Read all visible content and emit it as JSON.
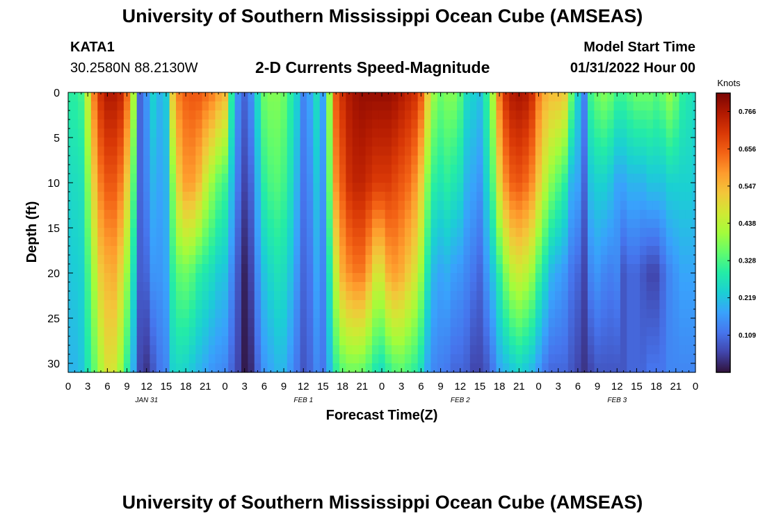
{
  "page": {
    "title": "University of Southern Mississippi Ocean Cube (AMSEAS)",
    "station_id": "KATA1",
    "station_coords": "30.2580N  88.2130W",
    "plot_heading": "2-D Currents Speed-Magnitude",
    "model_start_label": "Model Start Time",
    "model_start_value": "01/31/2022 Hour 00",
    "repeated_title": "University of Southern Mississippi Ocean Cube (AMSEAS)"
  },
  "colors": {
    "cmap": [
      "#30123b",
      "#4145ab",
      "#4675ed",
      "#39a2fc",
      "#1bcfd4",
      "#24eca6",
      "#61fc6c",
      "#a4fc3b",
      "#d1e834",
      "#f3c63a",
      "#fe9b2d",
      "#f36315",
      "#d93806",
      "#b11901",
      "#7a0403"
    ]
  },
  "chart_data": {
    "type": "heatmap",
    "title": "2-D Currents Speed-Magnitude",
    "xlabel": "Forecast Time(Z)",
    "ylabel": "Depth (ft)",
    "x_unit": "forecast hour",
    "xlim": [
      0,
      96
    ],
    "ylim": [
      31,
      0
    ],
    "x_ticks": [
      0,
      3,
      6,
      9,
      12,
      15,
      18,
      21,
      24,
      27,
      30,
      33,
      36,
      39,
      42,
      45,
      48,
      51,
      54,
      57,
      60,
      63,
      66,
      69,
      72,
      75,
      78,
      81,
      84,
      87,
      90,
      93,
      96
    ],
    "x_tick_labels": [
      "0",
      "3",
      "6",
      "9",
      "12",
      "15",
      "18",
      "21",
      "0",
      "3",
      "6",
      "9",
      "12",
      "15",
      "18",
      "21",
      "0",
      "3",
      "6",
      "9",
      "12",
      "15",
      "18",
      "21",
      "0",
      "3",
      "6",
      "9",
      "12",
      "15",
      "18",
      "21",
      "0"
    ],
    "date_labels": [
      {
        "hour": 12,
        "label": "JAN 31"
      },
      {
        "hour": 36,
        "label": "FEB 1"
      },
      {
        "hour": 60,
        "label": "FEB 2"
      },
      {
        "hour": 84,
        "label": "FEB 3"
      }
    ],
    "y_ticks": [
      0,
      5,
      10,
      15,
      20,
      25,
      30
    ],
    "y_tick_labels": [
      "0",
      "5",
      "10",
      "15",
      "20",
      "25",
      "30"
    ],
    "colorbar": {
      "unit": "Knots",
      "range": [
        0.0,
        0.82
      ],
      "ticks": [
        0.109,
        0.219,
        0.328,
        0.438,
        0.547,
        0.656,
        0.766
      ],
      "tick_labels": [
        "0.109",
        "0.219",
        "0.328",
        "0.438",
        "0.547",
        "0.656",
        "0.766"
      ]
    },
    "field": {
      "description": "current speed (knots) per forecast hour, interpolated over depth",
      "depth_nodes_ft": [
        0,
        10,
        20,
        31
      ],
      "hours": [
        0,
        1,
        2,
        3,
        4,
        5,
        6,
        7,
        8,
        9,
        10,
        11,
        12,
        13,
        14,
        15,
        16,
        17,
        18,
        19,
        20,
        21,
        22,
        23,
        24,
        25,
        26,
        27,
        28,
        29,
        30,
        31,
        32,
        33,
        34,
        35,
        36,
        37,
        38,
        39,
        40,
        41,
        42,
        43,
        44,
        45,
        46,
        47,
        48,
        49,
        50,
        51,
        52,
        53,
        54,
        55,
        56,
        57,
        58,
        59,
        60,
        61,
        62,
        63,
        64,
        65,
        66,
        67,
        68,
        69,
        70,
        71,
        72,
        73,
        74,
        75,
        76,
        77,
        78,
        79,
        80,
        81,
        82,
        83,
        84,
        85,
        86,
        87,
        88,
        89,
        90,
        91,
        92,
        93,
        94,
        95,
        96
      ],
      "speeds": [
        [
          0.3,
          0.25,
          0.22,
          0.2
        ],
        [
          0.3,
          0.26,
          0.23,
          0.2
        ],
        [
          0.32,
          0.27,
          0.24,
          0.22
        ],
        [
          0.45,
          0.38,
          0.32,
          0.28
        ],
        [
          0.62,
          0.52,
          0.42,
          0.35
        ],
        [
          0.72,
          0.62,
          0.52,
          0.42
        ],
        [
          0.76,
          0.66,
          0.55,
          0.48
        ],
        [
          0.76,
          0.66,
          0.56,
          0.47
        ],
        [
          0.74,
          0.62,
          0.5,
          0.4
        ],
        [
          0.64,
          0.52,
          0.4,
          0.3
        ],
        [
          0.42,
          0.34,
          0.26,
          0.19
        ],
        [
          0.1,
          0.1,
          0.09,
          0.06
        ],
        [
          0.16,
          0.14,
          0.1,
          0.04
        ],
        [
          0.24,
          0.2,
          0.16,
          0.08
        ],
        [
          0.2,
          0.18,
          0.16,
          0.12
        ],
        [
          0.23,
          0.2,
          0.18,
          0.14
        ],
        [
          0.52,
          0.38,
          0.3,
          0.24
        ],
        [
          0.62,
          0.52,
          0.35,
          0.25
        ],
        [
          0.65,
          0.58,
          0.36,
          0.24
        ],
        [
          0.66,
          0.58,
          0.34,
          0.22
        ],
        [
          0.66,
          0.54,
          0.3,
          0.2
        ],
        [
          0.64,
          0.46,
          0.28,
          0.18
        ],
        [
          0.62,
          0.4,
          0.26,
          0.16
        ],
        [
          0.58,
          0.35,
          0.23,
          0.15
        ],
        [
          0.55,
          0.32,
          0.22,
          0.14
        ],
        [
          0.3,
          0.22,
          0.15,
          0.1
        ],
        [
          0.15,
          0.12,
          0.08,
          0.06
        ],
        [
          0.1,
          0.06,
          0.02,
          0.01
        ],
        [
          0.15,
          0.1,
          0.06,
          0.03
        ],
        [
          0.26,
          0.2,
          0.15,
          0.1
        ],
        [
          0.36,
          0.3,
          0.22,
          0.16
        ],
        [
          0.38,
          0.33,
          0.25,
          0.18
        ],
        [
          0.38,
          0.34,
          0.27,
          0.2
        ],
        [
          0.36,
          0.32,
          0.26,
          0.2
        ],
        [
          0.3,
          0.27,
          0.22,
          0.16
        ],
        [
          0.24,
          0.2,
          0.16,
          0.12
        ],
        [
          0.14,
          0.12,
          0.1,
          0.08
        ],
        [
          0.18,
          0.15,
          0.12,
          0.1
        ],
        [
          0.26,
          0.22,
          0.18,
          0.14
        ],
        [
          0.18,
          0.16,
          0.14,
          0.12
        ],
        [
          0.4,
          0.36,
          0.28,
          0.2
        ],
        [
          0.66,
          0.6,
          0.45,
          0.3
        ],
        [
          0.72,
          0.66,
          0.56,
          0.34
        ],
        [
          0.76,
          0.72,
          0.6,
          0.36
        ],
        [
          0.78,
          0.74,
          0.62,
          0.36
        ],
        [
          0.79,
          0.74,
          0.62,
          0.35
        ],
        [
          0.79,
          0.72,
          0.56,
          0.32
        ],
        [
          0.79,
          0.7,
          0.48,
          0.28
        ],
        [
          0.79,
          0.7,
          0.48,
          0.26
        ],
        [
          0.79,
          0.7,
          0.56,
          0.3
        ],
        [
          0.78,
          0.68,
          0.58,
          0.33
        ],
        [
          0.76,
          0.66,
          0.56,
          0.34
        ],
        [
          0.74,
          0.64,
          0.52,
          0.32
        ],
        [
          0.72,
          0.6,
          0.48,
          0.3
        ],
        [
          0.66,
          0.52,
          0.4,
          0.26
        ],
        [
          0.52,
          0.38,
          0.28,
          0.18
        ],
        [
          0.4,
          0.3,
          0.2,
          0.14
        ],
        [
          0.36,
          0.28,
          0.18,
          0.13
        ],
        [
          0.38,
          0.3,
          0.19,
          0.12
        ],
        [
          0.38,
          0.28,
          0.17,
          0.1
        ],
        [
          0.34,
          0.26,
          0.16,
          0.1
        ],
        [
          0.26,
          0.2,
          0.14,
          0.09
        ],
        [
          0.24,
          0.18,
          0.12,
          0.06
        ],
        [
          0.22,
          0.16,
          0.1,
          0.06
        ],
        [
          0.3,
          0.24,
          0.16,
          0.08
        ],
        [
          0.42,
          0.34,
          0.22,
          0.12
        ],
        [
          0.62,
          0.5,
          0.3,
          0.18
        ],
        [
          0.72,
          0.6,
          0.38,
          0.2
        ],
        [
          0.76,
          0.65,
          0.44,
          0.22
        ],
        [
          0.77,
          0.66,
          0.46,
          0.24
        ],
        [
          0.76,
          0.64,
          0.44,
          0.22
        ],
        [
          0.72,
          0.6,
          0.4,
          0.2
        ],
        [
          0.62,
          0.52,
          0.32,
          0.16
        ],
        [
          0.56,
          0.44,
          0.26,
          0.12
        ],
        [
          0.54,
          0.38,
          0.2,
          0.1
        ],
        [
          0.54,
          0.34,
          0.18,
          0.1
        ],
        [
          0.52,
          0.3,
          0.16,
          0.1
        ],
        [
          0.36,
          0.2,
          0.12,
          0.08
        ],
        [
          0.24,
          0.18,
          0.1,
          0.06
        ],
        [
          0.14,
          0.1,
          0.06,
          0.04
        ],
        [
          0.32,
          0.22,
          0.14,
          0.06
        ],
        [
          0.36,
          0.24,
          0.16,
          0.08
        ],
        [
          0.38,
          0.24,
          0.14,
          0.08
        ],
        [
          0.36,
          0.22,
          0.13,
          0.08
        ],
        [
          0.32,
          0.18,
          0.14,
          0.08
        ],
        [
          0.32,
          0.18,
          0.08,
          0.08
        ],
        [
          0.34,
          0.2,
          0.1,
          0.1
        ],
        [
          0.36,
          0.2,
          0.1,
          0.1
        ],
        [
          0.36,
          0.2,
          0.08,
          0.1
        ],
        [
          0.36,
          0.22,
          0.06,
          0.12
        ],
        [
          0.34,
          0.22,
          0.06,
          0.12
        ],
        [
          0.36,
          0.22,
          0.1,
          0.12
        ],
        [
          0.4,
          0.24,
          0.14,
          0.14
        ],
        [
          0.36,
          0.24,
          0.16,
          0.14
        ],
        [
          0.3,
          0.24,
          0.18,
          0.14
        ],
        [
          0.28,
          0.24,
          0.18,
          0.14
        ],
        [
          0.26,
          0.22,
          0.18,
          0.14
        ]
      ]
    }
  }
}
